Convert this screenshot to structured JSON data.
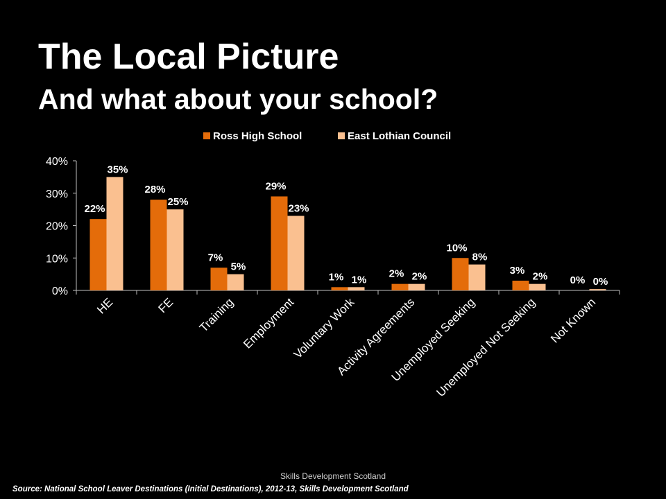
{
  "slide": {
    "title": "The Local Picture",
    "subtitle": "And what about your school?",
    "footer_org": "Skills Development Scotland",
    "source": "Source: National School Leaver Destinations (Initial Destinations), 2012-13, Skills Development Scotland"
  },
  "chart_data": {
    "type": "bar",
    "categories": [
      "HE",
      "FE",
      "Training",
      "Employment",
      "Voluntary Work",
      "Activity Agreements",
      "Unemployed Seeking",
      "Unemployed Not Seeking",
      "Not Known"
    ],
    "series": [
      {
        "name": "Ross High School",
        "color": "#E46C0A",
        "values": [
          22,
          28,
          7,
          29,
          1,
          2,
          10,
          3,
          0
        ],
        "labels": [
          "22%",
          "28%",
          "7%",
          "29%",
          "1%",
          "2%",
          "10%",
          "3%",
          "0%"
        ]
      },
      {
        "name": "East Lothian Council",
        "color": "#FAC090",
        "values": [
          35,
          25,
          5,
          23,
          1,
          2,
          8,
          2,
          0.4
        ],
        "labels": [
          "35%",
          "25%",
          "5%",
          "23%",
          "1%",
          "2%",
          "8%",
          "2%",
          "0%"
        ]
      }
    ],
    "ylim": [
      0,
      40
    ],
    "yticks": [
      0,
      10,
      20,
      30,
      40
    ],
    "ytick_labels": [
      "0%",
      "10%",
      "20%",
      "30%",
      "40%"
    ],
    "legend_position": "top",
    "grid": false
  }
}
